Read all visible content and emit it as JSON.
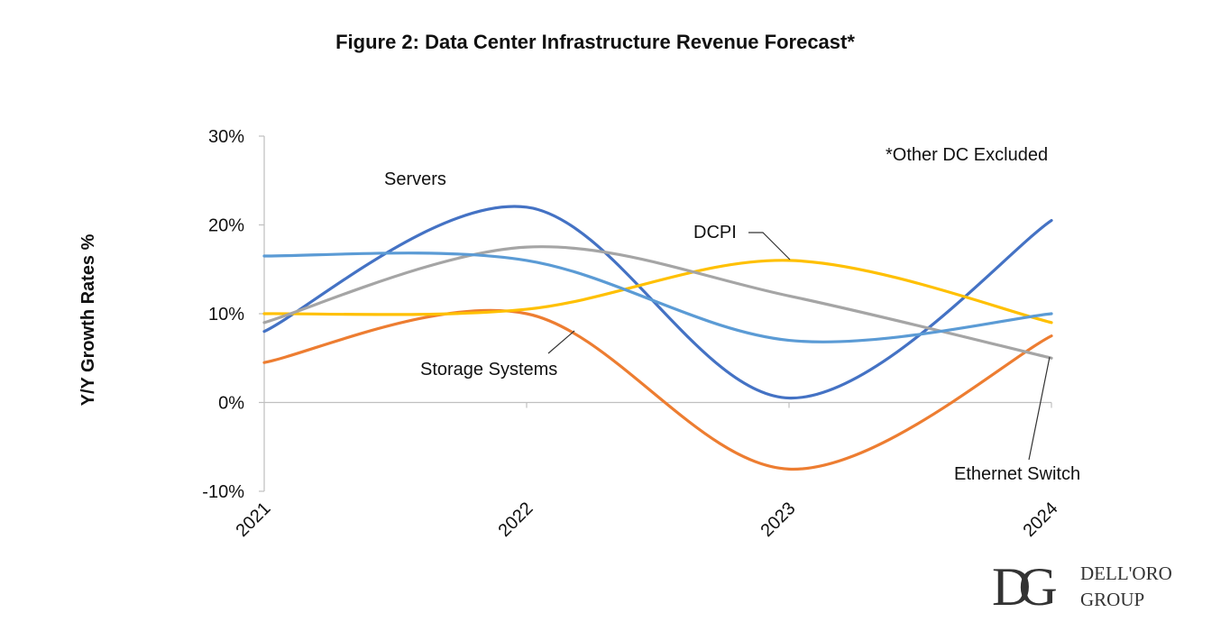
{
  "chart_data": {
    "type": "line",
    "title": "Figure 2: Data Center Infrastructure Revenue Forecast*",
    "xlabel": "",
    "ylabel": "Y/Y Growth Rates %",
    "categories": [
      "2021",
      "2022",
      "2023",
      "2024"
    ],
    "ylim": [
      -10,
      30
    ],
    "yticks": [
      "-10%",
      "0%",
      "10%",
      "20%",
      "30%"
    ],
    "grid": false,
    "smooth": true,
    "series": [
      {
        "name": "Servers",
        "color": "#4472C4",
        "values": [
          8,
          22,
          0.5,
          20.5
        ]
      },
      {
        "name": "Storage Systems",
        "color": "#ED7D31",
        "values": [
          4.5,
          10,
          -7.5,
          7.5
        ]
      },
      {
        "name": "DCPI",
        "color": "#FFC000",
        "values": [
          10,
          10.5,
          16,
          9
        ]
      },
      {
        "name": "Ethernet Switch",
        "color": "#A5A5A5",
        "values": [
          9,
          17.5,
          12,
          5
        ]
      },
      {
        "color": "#5B9BD5",
        "values": [
          16.5,
          16,
          7,
          10
        ]
      }
    ],
    "annotations": {
      "servers": "Servers",
      "storage": "Storage Systems",
      "dcpi": "DCPI",
      "ethernet": "Ethernet Switch",
      "footnote": "*Other DC Excluded"
    }
  },
  "logo": {
    "monogram": "DG",
    "line1": "DELL'ORO",
    "line2": "GROUP",
    "color": "#8B3A1F"
  }
}
